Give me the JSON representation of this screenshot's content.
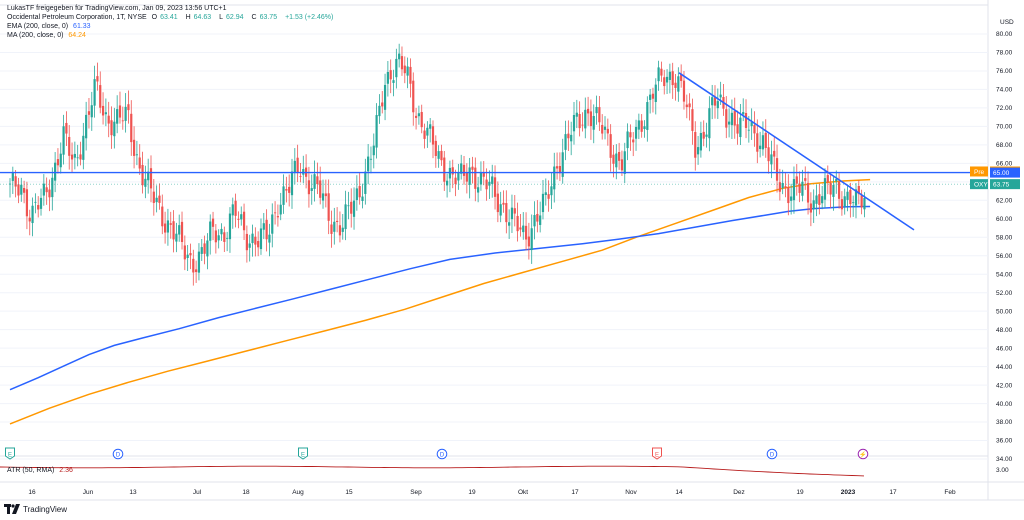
{
  "header": {
    "shared_by": "LukasTF freigegeben für TradingView.com, Jan 09, 2023 13:56 UTC+1",
    "symbol_line": "Occidental Petroleum Corporation, 1T, NYSE",
    "ohlc": {
      "o_label": "O",
      "o": "63.41",
      "h_label": "H",
      "h": "64.63",
      "l_label": "L",
      "l": "62.94",
      "c_label": "C",
      "c": "63.75",
      "change": "+1.53 (+2.46%)"
    },
    "ema_label": "EMA (200, close, 0)",
    "ema_value": "61.33",
    "ma_label": "MA (200, close, 0)",
    "ma_value": "64.24"
  },
  "atr": {
    "label": "ATR (50, RMA)",
    "value": "2.36",
    "axis_label": "3.00"
  },
  "price_axis": {
    "currency": "USD",
    "ticks": [
      "80.00",
      "78.00",
      "76.00",
      "74.00",
      "72.00",
      "70.00",
      "68.00",
      "66.00",
      "64.00",
      "62.00",
      "60.00",
      "58.00",
      "56.00",
      "54.00",
      "52.00",
      "50.00",
      "48.00",
      "46.00",
      "44.00",
      "42.00",
      "40.00",
      "38.00",
      "36.00",
      "34.00"
    ],
    "tick_values": [
      80,
      78,
      76,
      74,
      72,
      70,
      68,
      66,
      64,
      62,
      60,
      58,
      56,
      54,
      52,
      50,
      48,
      46,
      44,
      42,
      40,
      38,
      36,
      34
    ],
    "tags": [
      {
        "label": "Pre",
        "value": "65.12",
        "price": 65.12,
        "color": "#ff9800"
      },
      {
        "label": "",
        "value": "65.00",
        "price": 65.0,
        "color": "#2962ff"
      },
      {
        "label": "OXY",
        "value": "63.75",
        "price": 63.75,
        "color": "#26a69a"
      }
    ]
  },
  "time_axis": {
    "labels": [
      "16",
      "Jun",
      "13",
      "Jul",
      "18",
      "Aug",
      "15",
      "Sep",
      "19",
      "Okt",
      "17",
      "Nov",
      "14",
      "Dez",
      "19",
      "2023",
      "17",
      "Feb"
    ]
  },
  "event_markers": [
    {
      "letter": "E",
      "kind": "earnings",
      "color": "#26a69a"
    },
    {
      "letter": "D",
      "kind": "dividend",
      "color": "#2962ff"
    },
    {
      "letter": "E",
      "kind": "earnings",
      "color": "#26a69a"
    },
    {
      "letter": "D",
      "kind": "dividend",
      "color": "#2962ff"
    },
    {
      "letter": "E",
      "kind": "earnings",
      "color": "#ef5350"
    },
    {
      "letter": "D",
      "kind": "dividend",
      "color": "#2962ff"
    },
    {
      "letter": "⚡",
      "kind": "split",
      "color": "#9c27b0"
    }
  ],
  "footer": {
    "brand": "TradingView"
  },
  "chart_data": {
    "type": "candlestick",
    "symbol": "OXY",
    "interval": "1D",
    "ylim": [
      33,
      81
    ],
    "horizontal_line": 65.0,
    "trendline": {
      "from": {
        "date": "Nov 11",
        "price": 75.8
      },
      "to": {
        "date": "Jan 25",
        "price": 58.8
      }
    },
    "colors": {
      "up": "#26a69a",
      "down": "#ef5350",
      "ema": "#2962ff",
      "ma": "#ff9800",
      "hline": "#2962ff",
      "trend": "#2962ff",
      "atr": "#b71c1c"
    },
    "candles_anchor": [
      63.0,
      64.0,
      60.0,
      62.0,
      65.0,
      68.5,
      66.0,
      70.0,
      74.0,
      71.0,
      70.5,
      71.0,
      66.0,
      63.0,
      61.0,
      59.0,
      57.0,
      55.5,
      56.0,
      59.0,
      58.5,
      60.5,
      58.5,
      57.5,
      58.0,
      62.0,
      63.0,
      66.0,
      64.0,
      62.5,
      60.0,
      59.0,
      61.5,
      64.5,
      68.0,
      75.0,
      77.0,
      75.5,
      71.5,
      69.0,
      66.5,
      65.0,
      64.0,
      65.5,
      64.0,
      63.0,
      61.5,
      59.5,
      58.0,
      60.0,
      61.5,
      66.0,
      68.5,
      70.5,
      72.0,
      70.0,
      68.0,
      66.0,
      68.5,
      71.0,
      73.5,
      75.5,
      75.8,
      72.5,
      68.0,
      70.0,
      73.0,
      71.5,
      69.5,
      70.5,
      68.5,
      66.0,
      64.0,
      62.5,
      63.5,
      62.0,
      62.5,
      64.0,
      62.0,
      61.5,
      63.5
    ],
    "ema200": {
      "start": 41.5,
      "end": 61.33,
      "points": [
        [
          0,
          41.5
        ],
        [
          10,
          42.8
        ],
        [
          20,
          44.2
        ],
        [
          28,
          45.3
        ],
        [
          37,
          46.3
        ],
        [
          47,
          47.1
        ],
        [
          60,
          48.1
        ],
        [
          74,
          49.3
        ],
        [
          87,
          50.3
        ],
        [
          100,
          51.3
        ],
        [
          114,
          52.4
        ],
        [
          128,
          53.5
        ],
        [
          142,
          54.6
        ],
        [
          156,
          55.6
        ],
        [
          172,
          56.3
        ],
        [
          188,
          56.8
        ],
        [
          203,
          57.3
        ],
        [
          216,
          57.8
        ],
        [
          230,
          58.4
        ],
        [
          243,
          59.1
        ],
        [
          256,
          59.8
        ],
        [
          268,
          60.4
        ],
        [
          276,
          60.8
        ],
        [
          285,
          61.1
        ],
        [
          297,
          61.3
        ],
        [
          305,
          61.33
        ]
      ]
    },
    "ma200": {
      "start": 37.8,
      "end": 64.24,
      "points": [
        [
          0,
          37.8
        ],
        [
          14,
          39.5
        ],
        [
          28,
          41.0
        ],
        [
          42,
          42.3
        ],
        [
          56,
          43.5
        ],
        [
          70,
          44.6
        ],
        [
          84,
          45.7
        ],
        [
          98,
          46.8
        ],
        [
          112,
          47.9
        ],
        [
          126,
          49.0
        ],
        [
          140,
          50.2
        ],
        [
          154,
          51.6
        ],
        [
          168,
          53.0
        ],
        [
          182,
          54.2
        ],
        [
          196,
          55.4
        ],
        [
          210,
          56.6
        ],
        [
          222,
          58.0
        ],
        [
          236,
          59.5
        ],
        [
          250,
          61.0
        ],
        [
          262,
          62.3
        ],
        [
          274,
          63.3
        ],
        [
          284,
          63.8
        ],
        [
          296,
          64.1
        ],
        [
          305,
          64.24
        ]
      ]
    },
    "atr50": {
      "label": "ATR (50, RMA)",
      "last": 2.36
    }
  }
}
